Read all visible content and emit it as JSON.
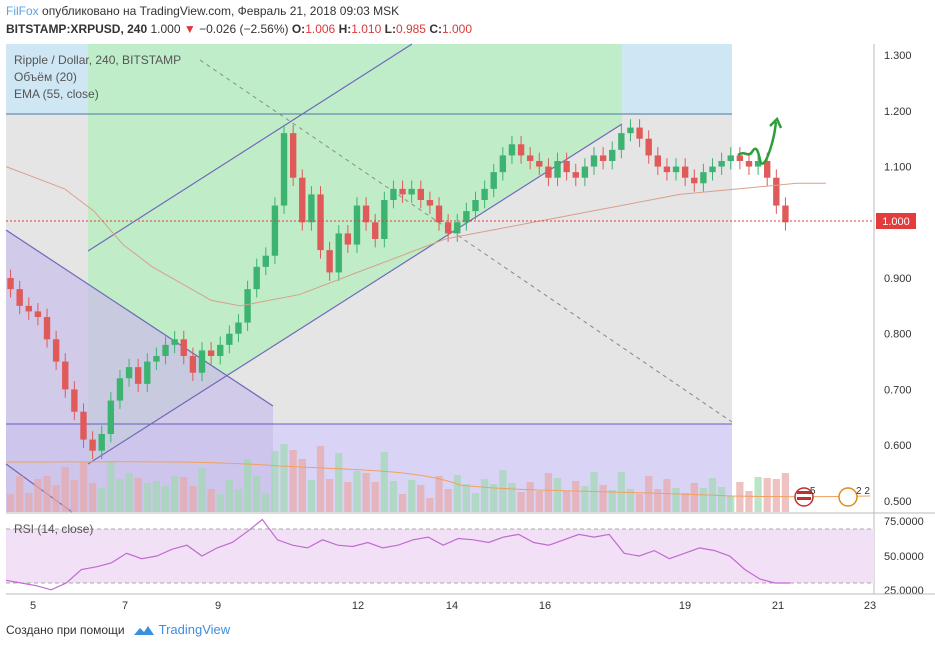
{
  "header": {
    "brand": "FilFox",
    "published_text": "опубликовано на TradingView.com, Февраль 21, 2018 09:03 MSK",
    "symbol": "BITSTAMP:XRPUSD, 240",
    "last": "1.000",
    "change": "−0.026 (−2.56%)",
    "open_label": "O:",
    "open": "1.006",
    "high_label": "H:",
    "high": "1.010",
    "low_label": "L:",
    "low": "0.985",
    "close_label": "C:",
    "close": "1.000"
  },
  "legend": {
    "title": "Ripple / Dollar, 240, BITSTAMP",
    "volume": "Объём (20)",
    "ema": "EMA (55, close)"
  },
  "rsi": {
    "label": "RSI (14, close)",
    "ticks": [
      "75.0000",
      "50.0000",
      "25.0000"
    ]
  },
  "footer": {
    "made_with": "Создано при помощи",
    "brand": "TradingView"
  },
  "colors": {
    "up": "#3cb371",
    "down": "#e05a5a",
    "ema": "#d9a08a",
    "rsi_line": "#c06bd0",
    "price_line": "#e23c3c",
    "axis_badge": "#e23c3c"
  },
  "chart_data": {
    "type": "candlestick",
    "title": "Ripple / Dollar, 240, BITSTAMP",
    "x_ticks": [
      "5",
      "7",
      "9",
      "12",
      "14",
      "16",
      "19",
      "21",
      "23"
    ],
    "y_ticks": [
      "1.300",
      "1.200",
      "1.100",
      "1.000",
      "0.900",
      "0.800",
      "0.700",
      "0.600",
      "0.500"
    ],
    "ylim": [
      0.48,
      1.32
    ],
    "last_price": "1.000",
    "candles": [
      0.88,
      0.85,
      0.84,
      0.83,
      0.79,
      0.75,
      0.7,
      0.66,
      0.61,
      0.59,
      0.62,
      0.68,
      0.72,
      0.74,
      0.71,
      0.75,
      0.76,
      0.78,
      0.79,
      0.76,
      0.73,
      0.77,
      0.76,
      0.78,
      0.8,
      0.82,
      0.88,
      0.92,
      0.94,
      1.03,
      1.16,
      1.08,
      1.0,
      1.05,
      0.95,
      0.91,
      0.98,
      0.96,
      1.03,
      1.0,
      0.97,
      1.04,
      1.06,
      1.05,
      1.06,
      1.04,
      1.03,
      1.0,
      0.98,
      1.0,
      1.02,
      1.04,
      1.06,
      1.09,
      1.12,
      1.14,
      1.12,
      1.11,
      1.1,
      1.08,
      1.11,
      1.09,
      1.08,
      1.1,
      1.12,
      1.11,
      1.13,
      1.16,
      1.17,
      1.15,
      1.12,
      1.1,
      1.09,
      1.1,
      1.08,
      1.07,
      1.09,
      1.1,
      1.11,
      1.12,
      1.11,
      1.1,
      1.11,
      1.08,
      1.03,
      1.0
    ],
    "ema55": [
      1.1,
      1.08,
      1.06,
      1.02,
      0.96,
      0.92,
      0.89,
      0.86,
      0.85,
      0.86,
      0.87,
      0.89,
      0.91,
      0.93,
      0.95,
      0.97,
      0.98,
      0.99,
      1.0,
      1.01,
      1.02,
      1.03,
      1.04,
      1.05,
      1.055,
      1.06,
      1.065,
      1.07,
      1.07
    ],
    "rsi": [
      32,
      30,
      28,
      25,
      30,
      40,
      42,
      45,
      52,
      48,
      50,
      55,
      58,
      50,
      56,
      60,
      68,
      77,
      62,
      58,
      56,
      62,
      58,
      57,
      60,
      56,
      58,
      62,
      64,
      58,
      63,
      62,
      60,
      64,
      66,
      60,
      58,
      62,
      66,
      64,
      66,
      52,
      50,
      54,
      48,
      52,
      56,
      54,
      50,
      40,
      33,
      30,
      30
    ],
    "annotations": [
      "ascending channel",
      "descending channel",
      "projected path arrow"
    ]
  }
}
